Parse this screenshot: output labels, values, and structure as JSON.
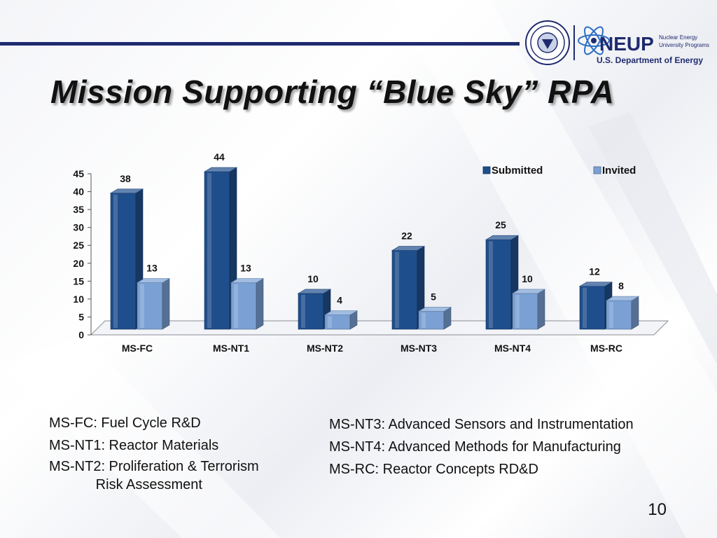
{
  "slide": {
    "title": "Mission Supporting “Blue Sky” RPA",
    "page_number": "10"
  },
  "logos": {
    "neup_wordmark": "NEUP",
    "neup_tagline_1": "Nuclear Energy",
    "neup_tagline_2": "University Programs",
    "doe_name": "U.S. Department of Energy",
    "seal_icon": "doe-seal-icon",
    "atom_icon": "atom-icon"
  },
  "chart_data": {
    "type": "bar",
    "categories": [
      "MS-FC",
      "MS-NT1",
      "MS-NT2",
      "MS-NT3",
      "MS-NT4",
      "MS-RC"
    ],
    "series": [
      {
        "name": "Submitted",
        "values": [
          38,
          44,
          10,
          22,
          25,
          12
        ],
        "color": "#1f4e8c"
      },
      {
        "name": "Invited",
        "values": [
          13,
          13,
          4,
          5,
          10,
          8
        ],
        "color": "#7aa0d4"
      }
    ],
    "yticks": [
      "0",
      "5",
      "10",
      "15",
      "20",
      "25",
      "30",
      "35",
      "40",
      "45"
    ],
    "ylim": [
      0,
      45
    ],
    "legend_position": "top-right",
    "style": "3d-column"
  },
  "definitions": {
    "left": [
      "MS-FC: Fuel Cycle R&D",
      "MS-NT1: Reactor Materials",
      "MS-NT2: Proliferation & Terrorism",
      "            Risk Assessment"
    ],
    "right": [
      "MS-NT3: Advanced Sensors and Instrumentation",
      "MS-NT4: Advanced Methods for Manufacturing",
      "MS-RC: Reactor Concepts RD&D"
    ]
  }
}
